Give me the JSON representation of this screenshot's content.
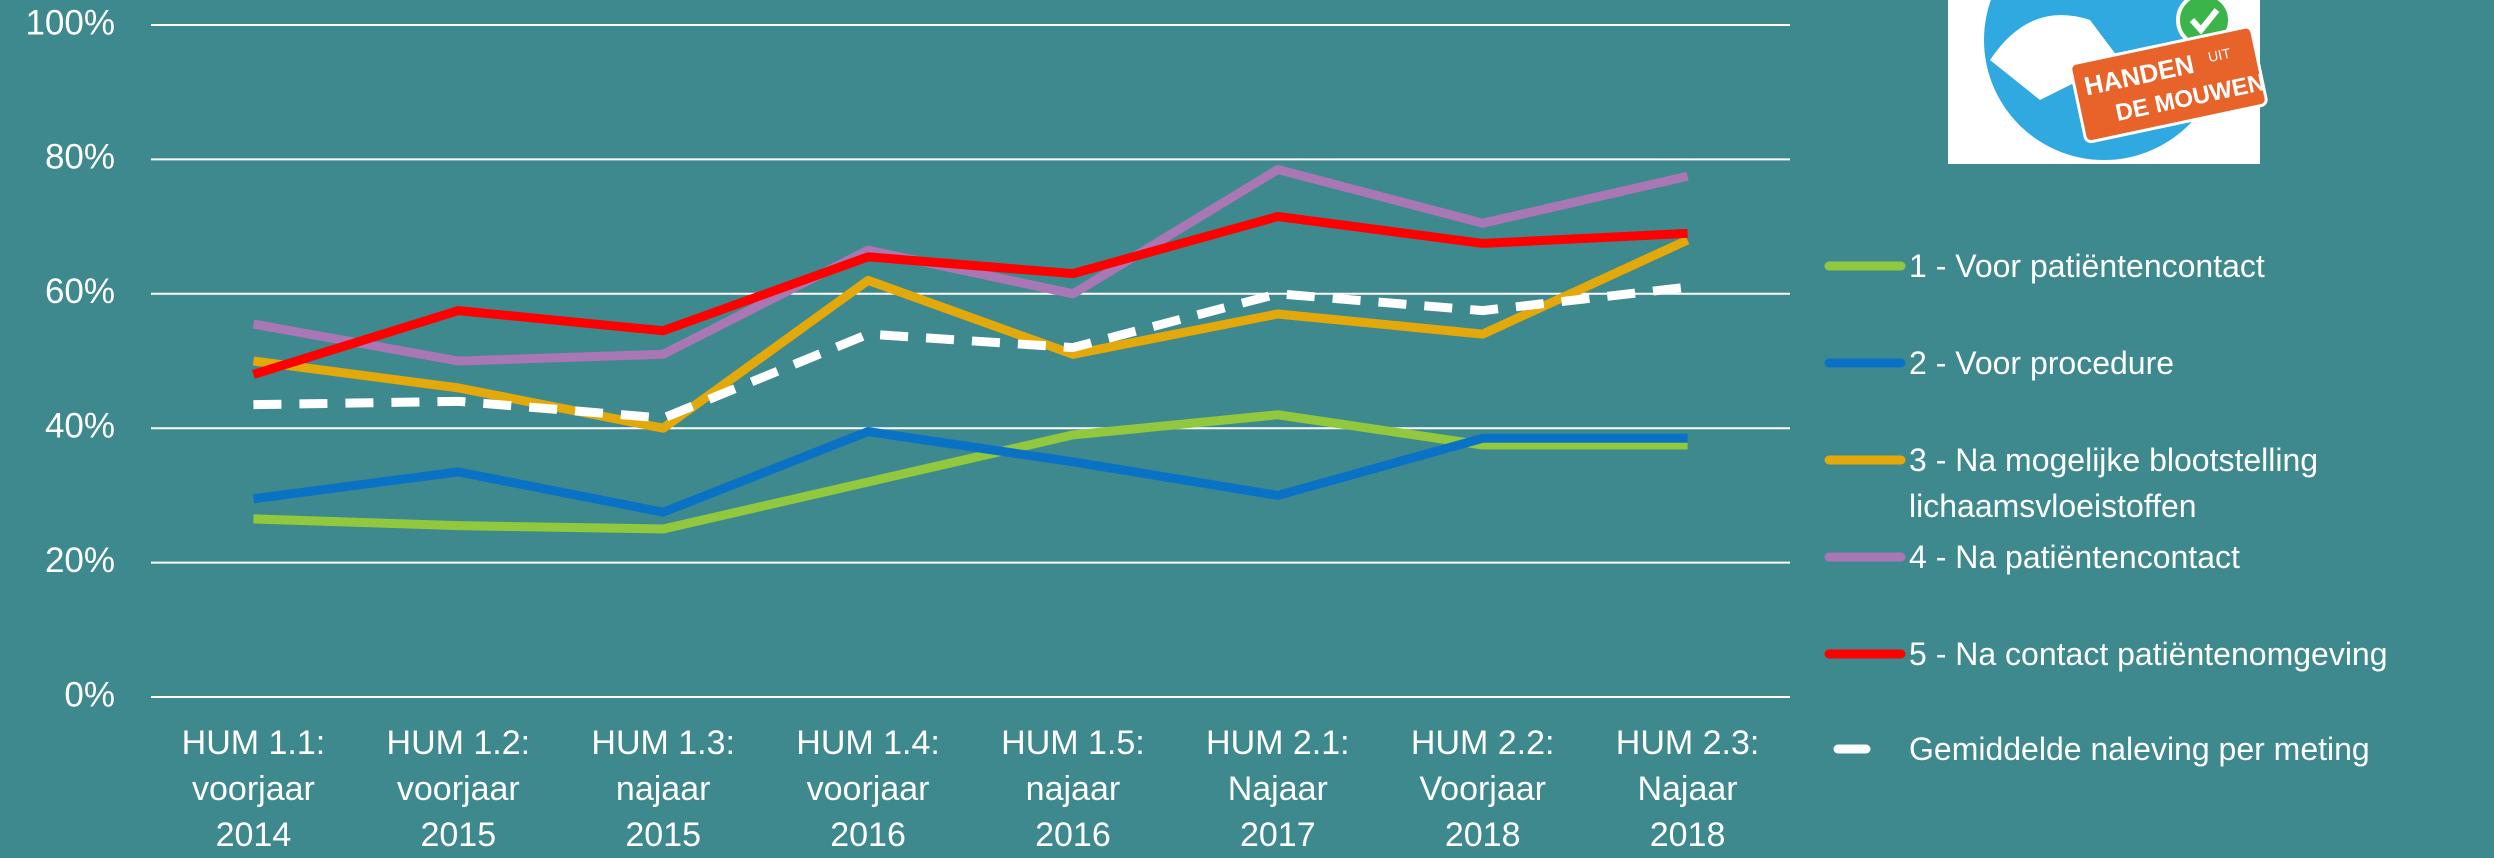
{
  "chart_data": {
    "type": "line",
    "categories": [
      "HUM 1.1: voorjaar 2014",
      "HUM 1.2: voorjaar 2015",
      "HUM 1.3: najaar 2015",
      "HUM 1.4: voorjaar 2016",
      "HUM 1.5: najaar 2016",
      "HUM 2.1: Najaar 2017",
      "HUM 2.2: Voorjaar 2018",
      "HUM 2.3: Najaar 2018"
    ],
    "series": [
      {
        "name": "1 - Voor patiëntencontact",
        "color": "#92c83e",
        "values": [
          26.5,
          25.5,
          25,
          32,
          39,
          42,
          37.5,
          37.5
        ]
      },
      {
        "name": "2 - Voor procedure",
        "color": "#0a72c4",
        "values": [
          29.5,
          33.5,
          27.5,
          39.5,
          35,
          30,
          38.5,
          38.5
        ]
      },
      {
        "name": "3 - Na mogelijke blootstelling lichaamsvloeistoffen",
        "color": "#e3a90a",
        "values": [
          50,
          46,
          40,
          62,
          51,
          57,
          54,
          68
        ]
      },
      {
        "name": "4 - Na patiëntencontact",
        "color": "#a977b4",
        "values": [
          55.5,
          50,
          51,
          66.5,
          60,
          78.5,
          70.5,
          77.5
        ]
      },
      {
        "name": "5 - Na contact patiëntenomgeving",
        "color": "#ff0000",
        "values": [
          48,
          57.5,
          54.5,
          65.5,
          63,
          71.5,
          67.5,
          69
        ]
      },
      {
        "name": "Gemiddelde naleving per meting",
        "color": "#ffffff",
        "style": "dashed",
        "values": [
          43.5,
          44,
          41.5,
          54,
          52,
          60,
          57.5,
          61
        ]
      }
    ],
    "ylim": [
      0,
      100
    ],
    "yticks": [
      {
        "value": 0,
        "label": "0%"
      },
      {
        "value": 20,
        "label": "20%"
      },
      {
        "value": 40,
        "label": "40%"
      },
      {
        "value": 60,
        "label": "60%"
      },
      {
        "value": 80,
        "label": "80%"
      },
      {
        "value": 100,
        "label": "100%"
      }
    ],
    "grid": true,
    "legend": "right"
  },
  "logo": {
    "line1": "HANDEN",
    "line2": "UIT",
    "line3": "DE MOUWEN"
  }
}
